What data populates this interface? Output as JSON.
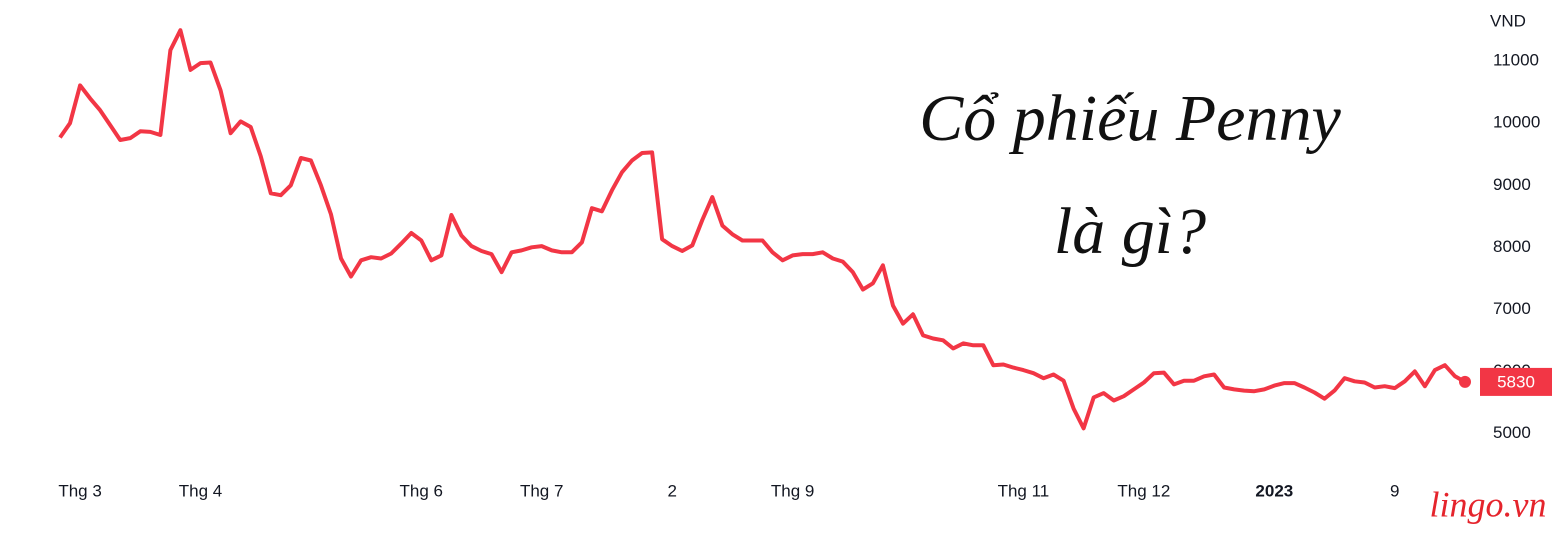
{
  "chart_data": {
    "type": "line",
    "y_label": "VND",
    "annotations": [
      "Cổ phiếu Penny",
      "là gì?"
    ],
    "watermark": "lingo.vn",
    "color": "#f23645",
    "ylim": [
      4700,
      11600
    ],
    "yticks": [
      5000,
      6000,
      7000,
      8000,
      9000,
      10000,
      11000
    ],
    "categories": [
      null,
      null,
      "Thg 3",
      null,
      null,
      null,
      null,
      null,
      null,
      null,
      null,
      null,
      null,
      null,
      "Thg 4",
      null,
      null,
      null,
      null,
      null,
      null,
      null,
      null,
      null,
      null,
      null,
      null,
      null,
      null,
      null,
      null,
      null,
      null,
      null,
      null,
      null,
      "Thg 6",
      null,
      null,
      null,
      null,
      null,
      null,
      null,
      null,
      null,
      null,
      null,
      "Thg 7",
      null,
      null,
      null,
      null,
      null,
      null,
      null,
      null,
      null,
      null,
      null,
      null,
      "2",
      null,
      null,
      null,
      null,
      null,
      null,
      null,
      null,
      null,
      null,
      null,
      "Thg 9",
      null,
      null,
      null,
      null,
      null,
      null,
      null,
      null,
      null,
      null,
      null,
      null,
      null,
      null,
      null,
      null,
      null,
      null,
      null,
      null,
      null,
      null,
      "Thg 11",
      null,
      null,
      null,
      null,
      null,
      null,
      null,
      null,
      null,
      null,
      null,
      "Thg 12",
      null,
      null,
      null,
      null,
      null,
      null,
      null,
      null,
      null,
      null,
      null,
      null,
      "2023",
      null,
      null,
      null,
      null,
      null,
      null,
      null,
      null,
      null,
      null,
      null,
      "9",
      null,
      null,
      null,
      null,
      null,
      null,
      null
    ],
    "values": [
      9770,
      10000,
      10610,
      10400,
      10210,
      9970,
      9730,
      9760,
      9870,
      9860,
      9810,
      11180,
      11500,
      10860,
      10970,
      10980,
      10530,
      9840,
      10030,
      9940,
      9470,
      8870,
      8840,
      9000,
      9440,
      9400,
      9000,
      8530,
      7820,
      7530,
      7790,
      7840,
      7820,
      7900,
      8060,
      8230,
      8110,
      7790,
      7870,
      8520,
      8190,
      8020,
      7940,
      7890,
      7600,
      7920,
      7950,
      8000,
      8020,
      7950,
      7920,
      7920,
      8080,
      8630,
      8580,
      8920,
      9210,
      9400,
      9520,
      9530,
      8130,
      8020,
      7940,
      8030,
      8440,
      8810,
      8350,
      8210,
      8110,
      8110,
      8110,
      7920,
      7790,
      7870,
      7890,
      7890,
      7920,
      7820,
      7770,
      7600,
      7320,
      7420,
      7710,
      7060,
      6770,
      6920,
      6580,
      6530,
      6500,
      6370,
      6450,
      6420,
      6420,
      6100,
      6110,
      6060,
      6020,
      5970,
      5890,
      5950,
      5850,
      5400,
      5080,
      5580,
      5650,
      5530,
      5600,
      5710,
      5820,
      5970,
      5980,
      5790,
      5850,
      5850,
      5920,
      5950,
      5740,
      5710,
      5690,
      5680,
      5710,
      5770,
      5810,
      5810,
      5740,
      5660,
      5560,
      5690,
      5890,
      5840,
      5820,
      5740,
      5760,
      5730,
      5840,
      6000,
      5760,
      6020,
      6100,
      5920,
      5830
    ]
  }
}
